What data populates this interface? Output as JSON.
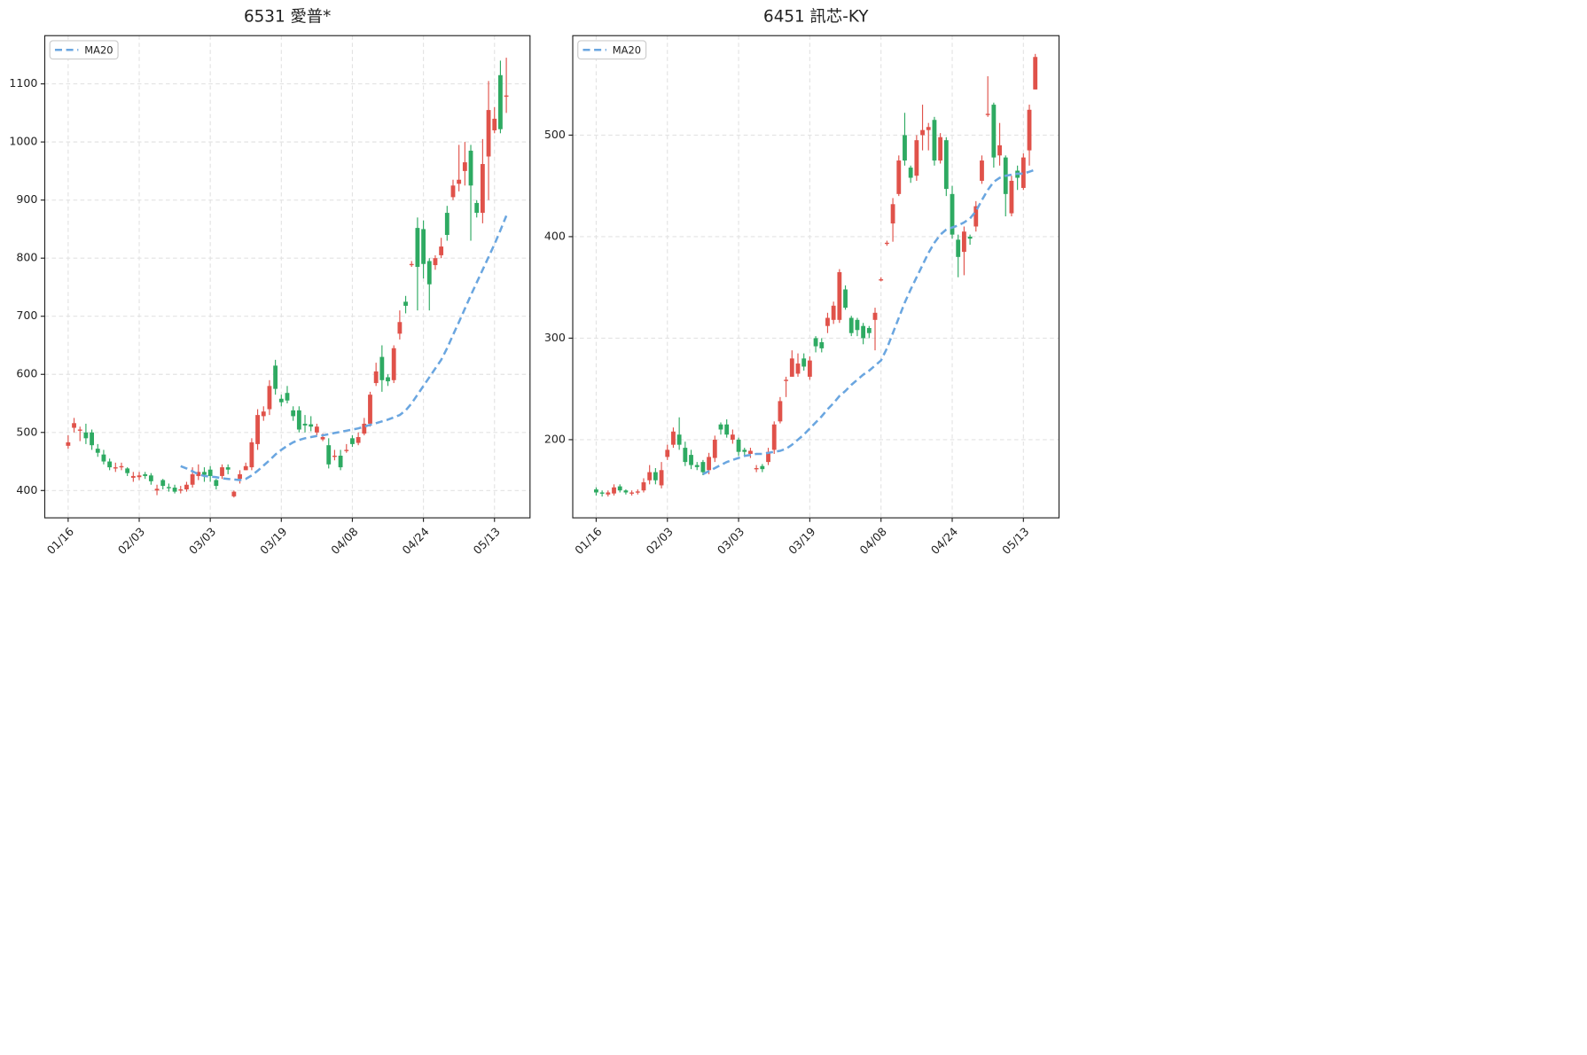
{
  "chart_data": [
    {
      "type": "candlestick",
      "title": "6531 愛普*",
      "categories": [
        "01/16",
        null,
        null,
        null,
        null,
        null,
        null,
        null,
        null,
        null,
        null,
        null,
        "02/03",
        null,
        null,
        null,
        null,
        null,
        null,
        null,
        null,
        null,
        null,
        null,
        "03/03",
        null,
        null,
        null,
        null,
        null,
        null,
        null,
        null,
        null,
        null,
        null,
        "03/19",
        null,
        null,
        null,
        null,
        null,
        null,
        null,
        null,
        null,
        null,
        null,
        "04/08",
        null,
        null,
        null,
        null,
        null,
        null,
        null,
        null,
        null,
        null,
        null,
        "04/24",
        null,
        null,
        null,
        null,
        null,
        null,
        null,
        null,
        null,
        null,
        null,
        "05/13",
        null,
        null
      ],
      "open": [
        477,
        508,
        503,
        500,
        500,
        472,
        462,
        450,
        438,
        440,
        438,
        422,
        423,
        428,
        426,
        400,
        418,
        406,
        405,
        400,
        402,
        410,
        425,
        432,
        436,
        418,
        425,
        440,
        390,
        420,
        435,
        440,
        480,
        528,
        540,
        615,
        558,
        568,
        538,
        538,
        515,
        514,
        500,
        488,
        478,
        458,
        460,
        468,
        490,
        482,
        498,
        515,
        585,
        630,
        595,
        590,
        670,
        725,
        788,
        852,
        850,
        795,
        788,
        805,
        878,
        905,
        928,
        950,
        985,
        895,
        878,
        975,
        1020,
        1115,
        1078
      ],
      "high": [
        495,
        525,
        510,
        515,
        505,
        480,
        470,
        455,
        448,
        448,
        440,
        432,
        432,
        432,
        430,
        410,
        420,
        412,
        410,
        408,
        415,
        440,
        445,
        440,
        442,
        420,
        445,
        445,
        400,
        435,
        448,
        490,
        540,
        545,
        590,
        625,
        565,
        580,
        545,
        545,
        530,
        528,
        515,
        498,
        490,
        470,
        470,
        480,
        495,
        500,
        525,
        570,
        620,
        650,
        600,
        650,
        710,
        735,
        795,
        870,
        865,
        800,
        805,
        835,
        890,
        935,
        995,
        1000,
        995,
        900,
        1005,
        1105,
        1060,
        1140,
        1145
      ],
      "low": [
        472,
        500,
        485,
        480,
        470,
        458,
        445,
        435,
        432,
        435,
        425,
        415,
        418,
        420,
        410,
        392,
        402,
        398,
        395,
        395,
        398,
        405,
        418,
        415,
        415,
        402,
        420,
        428,
        388,
        412,
        435,
        435,
        470,
        520,
        530,
        565,
        545,
        550,
        520,
        500,
        500,
        502,
        495,
        485,
        438,
        452,
        435,
        465,
        475,
        478,
        495,
        510,
        580,
        570,
        580,
        585,
        660,
        705,
        785,
        710,
        765,
        710,
        780,
        800,
        830,
        900,
        915,
        925,
        830,
        870,
        860,
        900,
        1015,
        1015,
        1050
      ],
      "close": [
        483,
        516,
        505,
        490,
        478,
        465,
        450,
        440,
        440,
        442,
        430,
        425,
        426,
        425,
        416,
        403,
        408,
        404,
        398,
        402,
        410,
        428,
        432,
        427,
        425,
        408,
        440,
        436,
        398,
        428,
        442,
        483,
        530,
        536,
        580,
        575,
        552,
        555,
        528,
        505,
        512,
        510,
        510,
        492,
        445,
        460,
        440,
        470,
        480,
        492,
        515,
        565,
        605,
        590,
        588,
        645,
        690,
        718,
        790,
        785,
        790,
        755,
        800,
        820,
        840,
        925,
        935,
        965,
        925,
        878,
        962,
        1055,
        1040,
        1022,
        1080
      ],
      "up_color": "#e0524a",
      "down_color": "#2eaa62",
      "series": [
        {
          "name": "MA20",
          "color": "#6aa6e0",
          "values": [
            null,
            null,
            null,
            null,
            null,
            null,
            null,
            null,
            null,
            null,
            null,
            null,
            null,
            null,
            null,
            null,
            null,
            null,
            null,
            442,
            438,
            433,
            428,
            425,
            424,
            423,
            421,
            420,
            419,
            418,
            420,
            426,
            434,
            443,
            452,
            462,
            470,
            477,
            483,
            487,
            490,
            492,
            494,
            495,
            497,
            499,
            501,
            503,
            505,
            507,
            510,
            513,
            516,
            519,
            522,
            526,
            530,
            538,
            550,
            565,
            580,
            595,
            610,
            625,
            645,
            668,
            690,
            713,
            736,
            758,
            780,
            802,
            824,
            848,
            873
          ]
        }
      ],
      "ylim": [
        353,
        1183
      ],
      "yticks": [
        400,
        500,
        600,
        700,
        800,
        900,
        1000,
        1100
      ],
      "grid": true,
      "legend": "upper left"
    },
    {
      "type": "candlestick",
      "title": "6451 訊芯-KY",
      "categories": [
        "01/16",
        null,
        null,
        null,
        null,
        null,
        null,
        null,
        null,
        null,
        null,
        null,
        "02/03",
        null,
        null,
        null,
        null,
        null,
        null,
        null,
        null,
        null,
        null,
        null,
        "03/03",
        null,
        null,
        null,
        null,
        null,
        null,
        null,
        null,
        null,
        null,
        null,
        "03/19",
        null,
        null,
        null,
        null,
        null,
        null,
        null,
        null,
        null,
        null,
        null,
        "04/08",
        null,
        null,
        null,
        null,
        null,
        null,
        null,
        null,
        null,
        null,
        null,
        "04/24",
        null,
        null,
        null,
        null,
        null,
        null,
        null,
        null,
        null,
        null,
        null,
        "05/13",
        null,
        null
      ],
      "open": [
        151,
        148,
        146,
        147,
        154,
        150,
        147,
        148,
        150,
        160,
        168,
        155,
        183,
        195,
        205,
        192,
        185,
        175,
        178,
        170,
        182,
        215,
        215,
        200,
        200,
        190,
        186,
        171,
        174,
        178,
        190,
        218,
        258,
        262,
        265,
        280,
        262,
        300,
        296,
        312,
        318,
        318,
        348,
        320,
        318,
        312,
        310,
        318,
        357,
        393,
        413,
        442,
        500,
        468,
        460,
        500,
        505,
        515,
        475,
        495,
        442,
        397,
        385,
        400,
        410,
        455,
        520,
        530,
        480,
        478,
        423,
        465,
        448,
        485,
        545
      ],
      "high": [
        153,
        150,
        150,
        156,
        156,
        151,
        150,
        151,
        162,
        175,
        172,
        178,
        195,
        212,
        222,
        198,
        190,
        178,
        180,
        187,
        204,
        217,
        220,
        210,
        202,
        192,
        192,
        175,
        176,
        192,
        218,
        242,
        262,
        288,
        285,
        285,
        282,
        302,
        300,
        325,
        336,
        368,
        352,
        322,
        320,
        315,
        312,
        330,
        360,
        396,
        438,
        480,
        522,
        470,
        500,
        530,
        512,
        518,
        502,
        498,
        450,
        402,
        410,
        402,
        435,
        480,
        558,
        532,
        512,
        480,
        460,
        470,
        482,
        530,
        580
      ],
      "low": [
        145,
        144,
        144,
        145,
        148,
        146,
        145,
        146,
        148,
        156,
        156,
        152,
        180,
        192,
        190,
        174,
        171,
        170,
        165,
        166,
        178,
        205,
        202,
        196,
        184,
        184,
        182,
        168,
        168,
        175,
        186,
        216,
        242,
        262,
        262,
        268,
        259,
        286,
        286,
        305,
        314,
        315,
        328,
        302,
        302,
        294,
        300,
        288,
        356,
        391,
        395,
        440,
        470,
        453,
        455,
        485,
        485,
        470,
        472,
        440,
        398,
        360,
        362,
        392,
        405,
        452,
        518,
        468,
        470,
        420,
        420,
        446,
        446,
        470,
        545
      ],
      "close": [
        148,
        147,
        148,
        153,
        150,
        148,
        148,
        149,
        158,
        168,
        160,
        170,
        190,
        208,
        195,
        178,
        175,
        173,
        168,
        183,
        200,
        210,
        205,
        205,
        188,
        188,
        189,
        172,
        171,
        188,
        215,
        238,
        259,
        280,
        275,
        272,
        278,
        292,
        290,
        320,
        332,
        365,
        330,
        305,
        308,
        300,
        305,
        325,
        358,
        394,
        432,
        475,
        475,
        458,
        495,
        505,
        508,
        475,
        498,
        447,
        402,
        380,
        405,
        398,
        430,
        475,
        521,
        478,
        490,
        442,
        455,
        458,
        478,
        525,
        577
      ],
      "up_color": "#e0524a",
      "down_color": "#2eaa62",
      "series": [
        {
          "name": "MA20",
          "color": "#6aa6e0",
          "values": [
            null,
            null,
            null,
            null,
            null,
            null,
            null,
            null,
            null,
            null,
            null,
            null,
            null,
            null,
            null,
            null,
            null,
            null,
            166,
            169,
            172,
            175,
            178,
            180,
            182,
            184,
            185,
            186,
            186,
            187,
            188,
            189,
            191,
            195,
            200,
            205,
            211,
            217,
            223,
            230,
            236,
            243,
            248,
            254,
            259,
            264,
            268,
            273,
            278,
            290,
            305,
            320,
            335,
            348,
            360,
            372,
            384,
            394,
            402,
            407,
            409,
            411,
            414,
            418,
            425,
            436,
            446,
            454,
            458,
            460,
            461,
            462,
            462,
            464,
            466
          ]
        }
      ],
      "ylim": [
        123,
        598
      ],
      "yticks": [
        200,
        300,
        400,
        500
      ],
      "grid": true,
      "legend": "upper left"
    }
  ]
}
